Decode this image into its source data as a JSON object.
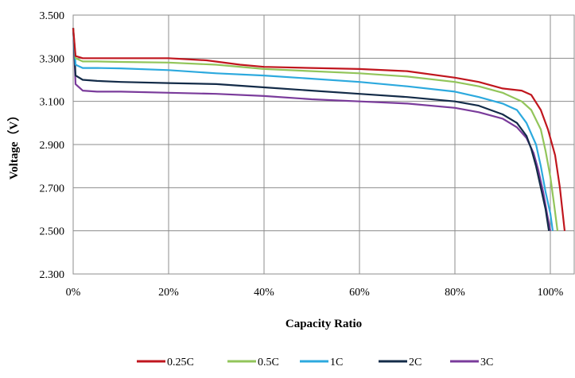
{
  "chart_data": {
    "type": "line",
    "title": "",
    "xlabel": "Capacity Ratio",
    "ylabel": "Voltage（V）",
    "xlim": [
      0,
      1.05
    ],
    "ylim": [
      2.3,
      3.5
    ],
    "x_ticks": [
      0,
      0.2,
      0.4,
      0.6,
      0.8,
      1.0
    ],
    "x_tick_labels": [
      "0%",
      "20%",
      "40%",
      "60%",
      "80%",
      "100%"
    ],
    "y_ticks": [
      2.3,
      2.5,
      2.7,
      2.9,
      3.1,
      3.3,
      3.5
    ],
    "y_tick_labels": [
      "2.300",
      "2.500",
      "2.700",
      "2.900",
      "3.100",
      "3.300",
      "3.500"
    ],
    "grid": true,
    "legend_position": "bottom",
    "series": [
      {
        "name": "0.25C",
        "color": "#c0161e",
        "points": [
          [
            0,
            3.44
          ],
          [
            0.005,
            3.31
          ],
          [
            0.02,
            3.3
          ],
          [
            0.05,
            3.3
          ],
          [
            0.1,
            3.3
          ],
          [
            0.2,
            3.3
          ],
          [
            0.28,
            3.29
          ],
          [
            0.35,
            3.27
          ],
          [
            0.4,
            3.26
          ],
          [
            0.5,
            3.255
          ],
          [
            0.6,
            3.25
          ],
          [
            0.7,
            3.24
          ],
          [
            0.8,
            3.21
          ],
          [
            0.85,
            3.19
          ],
          [
            0.9,
            3.16
          ],
          [
            0.94,
            3.15
          ],
          [
            0.96,
            3.13
          ],
          [
            0.98,
            3.06
          ],
          [
            0.995,
            2.97
          ],
          [
            1.01,
            2.85
          ],
          [
            1.02,
            2.7
          ],
          [
            1.025,
            2.6
          ],
          [
            1.03,
            2.5
          ]
        ]
      },
      {
        "name": "0.5C",
        "color": "#92c55a",
        "points": [
          [
            0,
            3.44
          ],
          [
            0.005,
            3.3
          ],
          [
            0.02,
            3.285
          ],
          [
            0.05,
            3.285
          ],
          [
            0.1,
            3.283
          ],
          [
            0.2,
            3.28
          ],
          [
            0.3,
            3.27
          ],
          [
            0.4,
            3.25
          ],
          [
            0.5,
            3.24
          ],
          [
            0.6,
            3.23
          ],
          [
            0.7,
            3.215
          ],
          [
            0.8,
            3.19
          ],
          [
            0.85,
            3.17
          ],
          [
            0.9,
            3.14
          ],
          [
            0.94,
            3.1
          ],
          [
            0.96,
            3.06
          ],
          [
            0.98,
            2.97
          ],
          [
            0.99,
            2.87
          ],
          [
            1.0,
            2.75
          ],
          [
            1.008,
            2.62
          ],
          [
            1.015,
            2.5
          ]
        ]
      },
      {
        "name": "1C",
        "color": "#2ca9de",
        "points": [
          [
            0,
            3.44
          ],
          [
            0.005,
            3.27
          ],
          [
            0.02,
            3.255
          ],
          [
            0.05,
            3.255
          ],
          [
            0.1,
            3.253
          ],
          [
            0.2,
            3.245
          ],
          [
            0.3,
            3.23
          ],
          [
            0.4,
            3.22
          ],
          [
            0.5,
            3.205
          ],
          [
            0.6,
            3.19
          ],
          [
            0.7,
            3.17
          ],
          [
            0.8,
            3.145
          ],
          [
            0.85,
            3.12
          ],
          [
            0.9,
            3.09
          ],
          [
            0.93,
            3.06
          ],
          [
            0.95,
            3.0
          ],
          [
            0.97,
            2.9
          ],
          [
            0.98,
            2.8
          ],
          [
            0.99,
            2.68
          ],
          [
            1.0,
            2.58
          ],
          [
            1.005,
            2.5
          ]
        ]
      },
      {
        "name": "2C",
        "color": "#132b48",
        "points": [
          [
            0,
            3.44
          ],
          [
            0.005,
            3.22
          ],
          [
            0.02,
            3.2
          ],
          [
            0.05,
            3.195
          ],
          [
            0.1,
            3.19
          ],
          [
            0.2,
            3.185
          ],
          [
            0.3,
            3.18
          ],
          [
            0.4,
            3.165
          ],
          [
            0.5,
            3.15
          ],
          [
            0.6,
            3.135
          ],
          [
            0.7,
            3.12
          ],
          [
            0.8,
            3.1
          ],
          [
            0.85,
            3.08
          ],
          [
            0.9,
            3.04
          ],
          [
            0.93,
            3.0
          ],
          [
            0.95,
            2.94
          ],
          [
            0.96,
            2.88
          ],
          [
            0.97,
            2.8
          ],
          [
            0.98,
            2.7
          ],
          [
            0.99,
            2.6
          ],
          [
            0.997,
            2.5
          ]
        ]
      },
      {
        "name": "3C",
        "color": "#7a3b9b",
        "points": [
          [
            0,
            3.44
          ],
          [
            0.005,
            3.18
          ],
          [
            0.02,
            3.15
          ],
          [
            0.05,
            3.145
          ],
          [
            0.1,
            3.145
          ],
          [
            0.2,
            3.14
          ],
          [
            0.3,
            3.135
          ],
          [
            0.4,
            3.125
          ],
          [
            0.5,
            3.11
          ],
          [
            0.6,
            3.1
          ],
          [
            0.7,
            3.09
          ],
          [
            0.8,
            3.07
          ],
          [
            0.85,
            3.05
          ],
          [
            0.9,
            3.02
          ],
          [
            0.93,
            2.98
          ],
          [
            0.95,
            2.93
          ],
          [
            0.965,
            2.86
          ],
          [
            0.975,
            2.78
          ],
          [
            0.985,
            2.68
          ],
          [
            0.993,
            2.58
          ],
          [
            1.0,
            2.5
          ]
        ]
      }
    ]
  }
}
